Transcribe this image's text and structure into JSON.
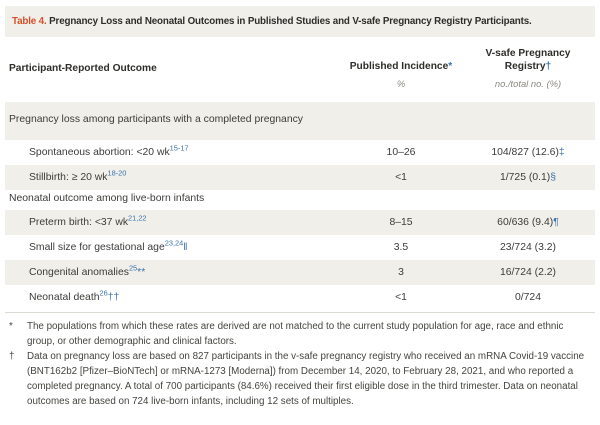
{
  "colors": {
    "title_accent": "#d6502b",
    "reference_blue": "#3a72ab",
    "row_shade": "#f1efe9"
  },
  "table": {
    "title_label": "Table 4.",
    "title_text": "Pregnancy Loss and Neonatal Outcomes in Published Studies and V-safe Pregnancy Registry Participants.",
    "columns": {
      "outcome": "Participant-Reported Outcome",
      "published": "Published Incidence",
      "published_marker": "*",
      "vsafe_line1": "V-safe Pregnancy",
      "vsafe_line2": "Registry",
      "vsafe_marker": "†",
      "published_unit": "%",
      "vsafe_unit": "no./total no. (%)"
    },
    "rows": [
      {
        "type": "section",
        "label": "Pregnancy loss among participants with a completed pregnancy",
        "ref": "",
        "ref_suffix": "",
        "published": "",
        "vsafe": "",
        "vsafe_marker": ""
      },
      {
        "type": "item",
        "label": "Spontaneous abortion: <20 wk",
        "ref": "15-17",
        "ref_suffix": "",
        "published": "10–26",
        "vsafe": "104/827 (12.6)",
        "vsafe_marker": "‡"
      },
      {
        "type": "item",
        "label": "Stillbirth: ≥ 20 wk",
        "ref": "18-20",
        "ref_suffix": "",
        "published": "<1",
        "vsafe": "1/725 (0.1)",
        "vsafe_marker": "§"
      },
      {
        "type": "section",
        "label": "Neonatal outcome among live-born infants",
        "ref": "",
        "ref_suffix": "",
        "published": "",
        "vsafe": "",
        "vsafe_marker": ""
      },
      {
        "type": "item",
        "label": "Preterm birth: <37 wk",
        "ref": "21,22",
        "ref_suffix": "",
        "published": "8–15",
        "vsafe": "60/636 (9.4)",
        "vsafe_marker": "¶"
      },
      {
        "type": "item",
        "label": "Small size for gestational age",
        "ref": "23,24",
        "ref_suffix": "‖",
        "published": "3.5",
        "vsafe": "23/724 (3.2)",
        "vsafe_marker": ""
      },
      {
        "type": "item",
        "label": "Congenital anomalies",
        "ref": "25",
        "ref_suffix": "**",
        "published": "3",
        "vsafe": "16/724 (2.2)",
        "vsafe_marker": ""
      },
      {
        "type": "item",
        "label": "Neonatal death",
        "ref": "26",
        "ref_suffix": "††",
        "published": "<1",
        "vsafe": "0/724",
        "vsafe_marker": ""
      }
    ]
  },
  "footnotes": [
    {
      "marker": "*",
      "text": "The populations from which these rates are derived are not matched to the current study population for age, race and ethnic group, or other demographic and clinical factors."
    },
    {
      "marker": "†",
      "text": "Data on pregnancy loss are based on 827 participants in the v-safe pregnancy registry who received an mRNA Covid-19 vaccine (BNT162b2 [Pfizer–BioNTech] or mRNA-1273 [Moderna]) from December 14, 2020, to February 28, 2021, and who reported a completed pregnancy. A total of 700 participants (84.6%) received their first eligible dose in the third trimester. Data on neonatal outcomes are based on 724 live-born infants, including 12 sets of multiples."
    }
  ]
}
